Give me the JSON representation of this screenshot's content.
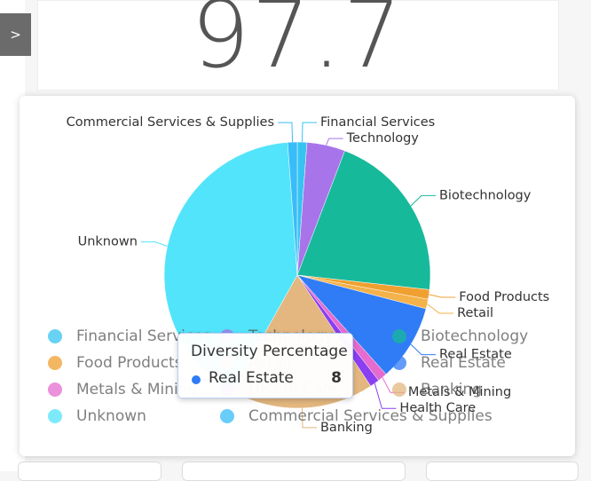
{
  "kpi": {
    "value": "97.7"
  },
  "nav": {
    "toggle": ">"
  },
  "chart_data": {
    "type": "pie",
    "title": "Diversity Percentage",
    "categories": [
      "Financial Services",
      "Technology",
      "Biotechnology",
      "Food Products",
      "Retail",
      "Real Estate",
      "Metals & Mining",
      "Health Care",
      "Banking",
      "Unknown",
      "Commercial Services & Supplies"
    ],
    "values": [
      1,
      4,
      18,
      1,
      1,
      8,
      1,
      1,
      15,
      35,
      1
    ],
    "colors": [
      "#36c3f2",
      "#a874ea",
      "#17b99b",
      "#f0a030",
      "#f4b24a",
      "#2f7cf6",
      "#e56bcf",
      "#8a3ff0",
      "#e3b77f",
      "#52e4fa",
      "#38bdf8"
    ],
    "tooltip_index": 5
  }
}
